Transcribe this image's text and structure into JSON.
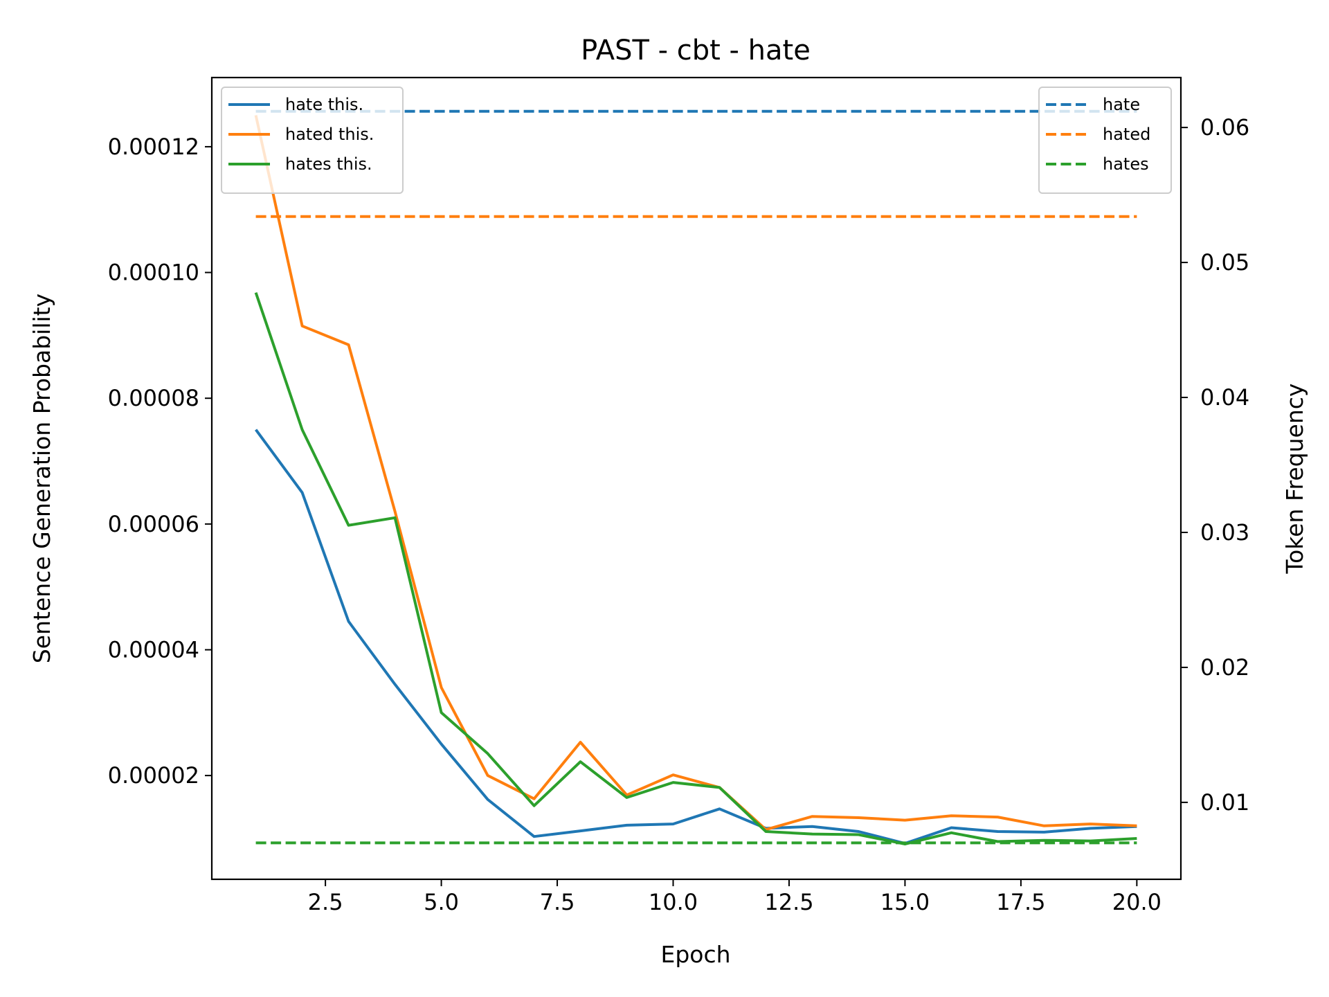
{
  "chart_data": {
    "type": "line",
    "title": "PAST - cbt - hate",
    "xlabel": "Epoch",
    "ylabel": "Sentence Generation Probability",
    "y2label": "Token Frequency",
    "xlim": [
      0.05,
      20.95
    ],
    "ylim": [
      3.5e-06,
      0.000131
    ],
    "y2lim": [
      0.0043,
      0.0637
    ],
    "x_ticks": [
      2.5,
      5.0,
      7.5,
      10.0,
      12.5,
      15.0,
      17.5,
      20.0
    ],
    "x_tick_labels": [
      "2.5",
      "5.0",
      "7.5",
      "10.0",
      "12.5",
      "15.0",
      "17.5",
      "20.0"
    ],
    "y_ticks": [
      2e-05,
      4e-05,
      6e-05,
      8e-05,
      0.0001,
      0.00012
    ],
    "y_tick_labels": [
      "0.00002",
      "0.00004",
      "0.00006",
      "0.00008",
      "0.00010",
      "0.00012"
    ],
    "y2_ticks": [
      0.01,
      0.02,
      0.03,
      0.04,
      0.05,
      0.06
    ],
    "y2_tick_labels": [
      "0.01",
      "0.02",
      "0.03",
      "0.04",
      "0.05",
      "0.06"
    ],
    "x": [
      1,
      2,
      3,
      4,
      5,
      6,
      7,
      8,
      9,
      10,
      11,
      12,
      13,
      14,
      15,
      16,
      17,
      18,
      19,
      20
    ],
    "series": [
      {
        "name": "hate this.",
        "axis": "left",
        "color": "#1f77b4",
        "style": "solid",
        "values": [
          7.5e-05,
          6.5e-05,
          4.45e-05,
          3.45e-05,
          2.5e-05,
          1.62e-05,
          1.03e-05,
          1.12e-05,
          1.21e-05,
          1.23e-05,
          1.47e-05,
          1.16e-05,
          1.19e-05,
          1.11e-05,
          9.2e-06,
          1.17e-05,
          1.11e-05,
          1.1e-05,
          1.16e-05,
          1.19e-05
        ]
      },
      {
        "name": "hated this.",
        "axis": "left",
        "color": "#ff7f0e",
        "style": "solid",
        "values": [
          0.000125,
          9.15e-05,
          8.85e-05,
          6.2e-05,
          3.4e-05,
          2e-05,
          1.63e-05,
          2.53e-05,
          1.69e-05,
          2.01e-05,
          1.81e-05,
          1.14e-05,
          1.35e-05,
          1.33e-05,
          1.29e-05,
          1.36e-05,
          1.34e-05,
          1.2e-05,
          1.23e-05,
          1.2e-05
        ]
      },
      {
        "name": "hates this.",
        "axis": "left",
        "color": "#2ca02c",
        "style": "solid",
        "values": [
          9.68e-05,
          7.5e-05,
          5.98e-05,
          6.1e-05,
          3e-05,
          2.35e-05,
          1.52e-05,
          2.22e-05,
          1.65e-05,
          1.89e-05,
          1.81e-05,
          1.11e-05,
          1.07e-05,
          1.06e-05,
          9.1e-06,
          1.09e-05,
          9.5e-06,
          9.7e-06,
          9.6e-06,
          1e-05
        ]
      },
      {
        "name": "hate",
        "axis": "right",
        "color": "#1f77b4",
        "style": "dashed",
        "values": [
          0.0612,
          0.0612,
          0.0612,
          0.0612,
          0.0612,
          0.0612,
          0.0612,
          0.0612,
          0.0612,
          0.0612,
          0.0612,
          0.0612,
          0.0612,
          0.0612,
          0.0612,
          0.0612,
          0.0612,
          0.0612,
          0.0612,
          0.0612
        ]
      },
      {
        "name": "hated",
        "axis": "right",
        "color": "#ff7f0e",
        "style": "dashed",
        "values": [
          0.0534,
          0.0534,
          0.0534,
          0.0534,
          0.0534,
          0.0534,
          0.0534,
          0.0534,
          0.0534,
          0.0534,
          0.0534,
          0.0534,
          0.0534,
          0.0534,
          0.0534,
          0.0534,
          0.0534,
          0.0534,
          0.0534,
          0.0534
        ]
      },
      {
        "name": "hates",
        "axis": "right",
        "color": "#2ca02c",
        "style": "dashed",
        "values": [
          0.007,
          0.007,
          0.007,
          0.007,
          0.007,
          0.007,
          0.007,
          0.007,
          0.007,
          0.007,
          0.007,
          0.007,
          0.007,
          0.007,
          0.007,
          0.007,
          0.007,
          0.007,
          0.007,
          0.007
        ]
      }
    ],
    "legends": [
      {
        "placement": "upper-left",
        "entries": [
          "hate this.",
          "hated this.",
          "hates this."
        ]
      },
      {
        "placement": "upper-right",
        "entries": [
          "hate",
          "hated",
          "hates"
        ]
      }
    ],
    "grid": false
  }
}
